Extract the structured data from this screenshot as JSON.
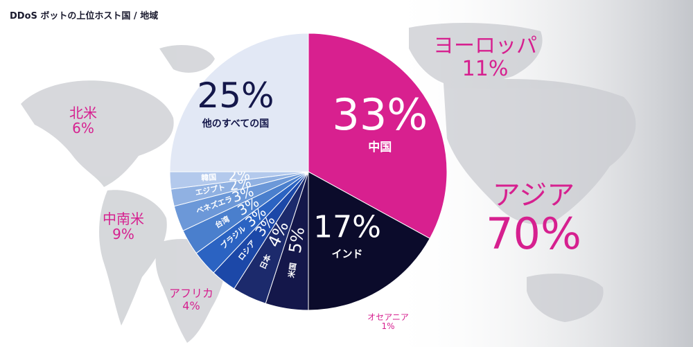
{
  "title": "DDoS ボットの上位ホスト国 / 地域",
  "colors": {
    "accent": "#d6208f",
    "dark": "#0b0b2b",
    "rest": "#e2e8f5"
  },
  "chart_data": {
    "type": "pie",
    "title": "DDoS ボットの上位ホスト国 / 地域",
    "slices": [
      {
        "label": "中国",
        "value": 33,
        "display": "33%",
        "color": "#d8208f",
        "text": "#ffffff"
      },
      {
        "label": "インド",
        "value": 17,
        "display": "17%",
        "color": "#0b0b2b",
        "text": "#ffffff"
      },
      {
        "label": "米国",
        "value": 5,
        "display": "5%",
        "color": "#14174a",
        "text": "#ffffff"
      },
      {
        "label": "日本",
        "value": 4,
        "display": "4%",
        "color": "#1c2a6c",
        "text": "#ffffff"
      },
      {
        "label": "ロシア",
        "value": 3,
        "display": "3%",
        "color": "#1c48a8",
        "text": "#ffffff"
      },
      {
        "label": "ブラジル",
        "value": 3,
        "display": "3%",
        "color": "#2b63c2",
        "text": "#ffffff"
      },
      {
        "label": "台湾",
        "value": 3,
        "display": "3%",
        "color": "#4a7fcd",
        "text": "#ffffff"
      },
      {
        "label": "ベネズエラ",
        "value": 3,
        "display": "3%",
        "color": "#6c98d8",
        "text": "#ffffff"
      },
      {
        "label": "エジプト",
        "value": 2,
        "display": "2%",
        "color": "#90b1e2",
        "text": "#ffffff"
      },
      {
        "label": "韓国",
        "value": 2,
        "display": "2%",
        "color": "#b3c9ec",
        "text": "#ffffff"
      },
      {
        "label": "他のすべての国",
        "value": 25,
        "display": "25%",
        "color": "#e2e8f5",
        "text": "#14174a"
      }
    ],
    "regions": [
      {
        "name": "ヨーロッパ",
        "pct": "11%"
      },
      {
        "name": "北米",
        "pct": "6%"
      },
      {
        "name": "アジア",
        "pct": "70%"
      },
      {
        "name": "中南米",
        "pct": "9%"
      },
      {
        "name": "アフリカ",
        "pct": "4%"
      },
      {
        "name": "オセアニア",
        "pct": "1%"
      }
    ]
  }
}
